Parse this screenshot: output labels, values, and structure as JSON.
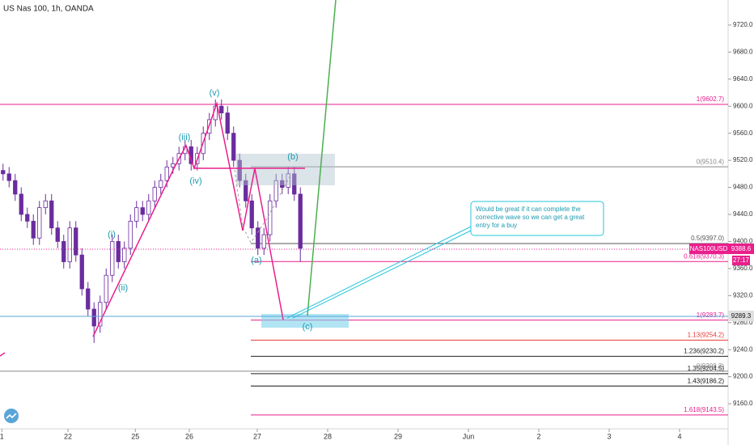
{
  "chart_data": {
    "type": "candlestick",
    "title": "US Nas 100, 1h, OANDA",
    "up_color": "#ffffff",
    "down_color": "#6a2c9e",
    "open": [
      9505,
      9500,
      9490,
      9470,
      9440,
      9430,
      9405,
      9450,
      9460,
      9420,
      9400,
      9370,
      9420,
      9380,
      9330,
      9300,
      9275,
      9310,
      9350,
      9400,
      9370,
      9390,
      9430,
      9450,
      9440,
      9460,
      9480,
      9490,
      9510,
      9515,
      9530,
      9540,
      9515,
      9530,
      9560,
      9580,
      9600,
      9590,
      9560,
      9520,
      9490,
      9460,
      9420,
      9390,
      9410,
      9460,
      9490,
      9480,
      9500,
      9470
    ],
    "high": [
      9515,
      9510,
      9500,
      9480,
      9450,
      9440,
      9460,
      9470,
      9470,
      9430,
      9410,
      9430,
      9430,
      9390,
      9340,
      9310,
      9320,
      9360,
      9410,
      9410,
      9400,
      9440,
      9460,
      9460,
      9470,
      9490,
      9500,
      9520,
      9525,
      9540,
      9550,
      9550,
      9540,
      9570,
      9590,
      9610,
      9610,
      9600,
      9570,
      9530,
      9500,
      9470,
      9430,
      9420,
      9470,
      9500,
      9500,
      9510,
      9510,
      9480
    ],
    "low": [
      9490,
      9480,
      9460,
      9430,
      9420,
      9395,
      9395,
      9440,
      9410,
      9390,
      9360,
      9360,
      9370,
      9320,
      9290,
      9250,
      9265,
      9300,
      9340,
      9360,
      9360,
      9380,
      9420,
      9430,
      9430,
      9450,
      9470,
      9480,
      9500,
      9505,
      9520,
      9505,
      9505,
      9520,
      9550,
      9570,
      9580,
      9550,
      9510,
      9480,
      9450,
      9410,
      9380,
      9380,
      9400,
      9450,
      9470,
      9470,
      9460,
      9370
    ],
    "close": [
      9500,
      9490,
      9470,
      9440,
      9430,
      9405,
      9450,
      9460,
      9420,
      9400,
      9370,
      9420,
      9380,
      9330,
      9300,
      9275,
      9310,
      9350,
      9400,
      9370,
      9390,
      9430,
      9450,
      9440,
      9460,
      9480,
      9490,
      9510,
      9515,
      9530,
      9540,
      9515,
      9530,
      9560,
      9580,
      9600,
      9590,
      9560,
      9520,
      9490,
      9460,
      9420,
      9390,
      9410,
      9460,
      9490,
      9480,
      9500,
      9470,
      9390
    ],
    "xlim": [
      0,
      120
    ],
    "xticks": [
      {
        "value": 0.3,
        "label": "1"
      },
      {
        "value": 11.2,
        "label": "22"
      },
      {
        "value": 22.3,
        "label": "25"
      },
      {
        "value": 31.2,
        "label": "26"
      },
      {
        "value": 42.4,
        "label": "27"
      },
      {
        "value": 54,
        "label": "28"
      },
      {
        "value": 65.6,
        "label": "29"
      },
      {
        "value": 77.2,
        "label": "Jun"
      },
      {
        "value": 88.8,
        "label": "2"
      },
      {
        "value": 100.4,
        "label": "3"
      },
      {
        "value": 112,
        "label": "4"
      }
    ],
    "ylim": [
      9123,
      9757
    ],
    "yticks": [
      {
        "value": 9160,
        "label": "9160.0"
      },
      {
        "value": 9200,
        "label": "9200.0"
      },
      {
        "value": 9240,
        "label": "9240.0"
      },
      {
        "value": 9280,
        "label": "9280.0"
      },
      {
        "value": 9320,
        "label": "9320.0"
      },
      {
        "value": 9360,
        "label": "9360.0"
      },
      {
        "value": 9400,
        "label": "9400.0"
      },
      {
        "value": 9440,
        "label": "9440.0"
      },
      {
        "value": 9480,
        "label": "9480.0"
      },
      {
        "value": 9520,
        "label": "9520.0"
      },
      {
        "value": 9560,
        "label": "9560.0"
      },
      {
        "value": 9600,
        "label": "9600.0"
      },
      {
        "value": 9640,
        "label": "9640.0"
      },
      {
        "value": 9680,
        "label": "9680.0"
      },
      {
        "value": 9720,
        "label": "9720.0"
      }
    ],
    "levels": [
      {
        "value": 9602.7,
        "label": "1(9602.7)",
        "color": "#e91e8c"
      },
      {
        "value": 9510.4,
        "label": "0(9510.4)",
        "color": "#888888"
      },
      {
        "value": 9397.0,
        "label": "0.5(9397.0)",
        "color": "#555555"
      },
      {
        "value": 9370.3,
        "label": "0.618(9370.3)",
        "color": "#e91e8c"
      },
      {
        "value": 9283.7,
        "label": "1(9283.7)",
        "color": "#e91e8c"
      },
      {
        "value": 9254.2,
        "label": "1.13(9254.2)",
        "color": "#e53935"
      },
      {
        "value": 9230.2,
        "label": "1.236(9230.2)",
        "color": "#222222"
      },
      {
        "value": 9208.3,
        "label": "0(9208.3)",
        "color": "#888888"
      },
      {
        "value": 9204.5,
        "label": "1.35(9204.5)",
        "color": "#222222"
      },
      {
        "value": 9186.2,
        "label": "1.43(9186.2)",
        "color": "#111111"
      },
      {
        "value": 9143.5,
        "label": "1.618(9143.5)",
        "color": "#e91e8c"
      }
    ],
    "waves": [
      "(i)",
      "(ii)",
      "(iii)",
      "(iv)",
      "(v)",
      "(a)",
      "(b)",
      "(c)"
    ],
    "symbol": "NAS100USD",
    "last_price": {
      "value": 9388.6,
      "label": "9388.6"
    },
    "countdown": "27:17",
    "cursor_price": {
      "value": 9289.3,
      "label": "9289.3"
    },
    "note": [
      "Would be great if it can complete the",
      "corrective wave so we can get a great",
      "entry for a buy"
    ]
  }
}
